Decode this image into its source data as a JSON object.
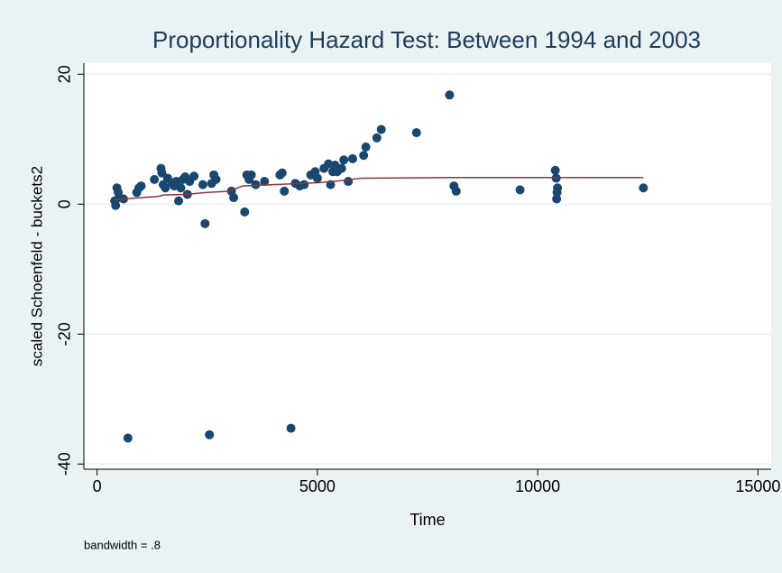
{
  "chart_data": {
    "type": "scatter",
    "title": "Proportionality Hazard Test: Between 1994 and 2003",
    "xlabel": "Time",
    "ylabel": "scaled Schoenfeld - buckets2",
    "note": "bandwidth = .8",
    "xlim": [
      -300,
      15300
    ],
    "ylim": [
      -40.8,
      21.7
    ],
    "xticks": [
      0,
      5000,
      10000,
      15000
    ],
    "yticks": [
      20,
      0,
      -20,
      -40
    ],
    "grid": true,
    "series": [
      {
        "type": "scatter",
        "color": "#1a476f",
        "x": [
          400,
          420,
          450,
          480,
          500,
          600,
          700,
          900,
          950,
          1000,
          1300,
          1450,
          1470,
          1500,
          1550,
          1600,
          1700,
          1750,
          1800,
          1850,
          1900,
          1950,
          2000,
          2050,
          2100,
          2200,
          2400,
          2450,
          2550,
          2600,
          2650,
          2700,
          3050,
          3100,
          3350,
          3400,
          3450,
          3500,
          3600,
          3800,
          4150,
          4200,
          4250,
          4400,
          4500,
          4600,
          4700,
          4850,
          4950,
          5000,
          5150,
          5250,
          5300,
          5350,
          5400,
          5450,
          5550,
          5600,
          5700,
          5800,
          6050,
          6100,
          6350,
          6450,
          7250,
          8000,
          8100,
          8150,
          9600,
          10400,
          10420,
          10450,
          10440,
          10430,
          12400
        ],
        "values": [
          0.5,
          -0.2,
          2.5,
          1.8,
          1,
          0.8,
          -36,
          1.8,
          2.5,
          2.8,
          3.8,
          5.5,
          4.8,
          3,
          2.5,
          4,
          3.3,
          2.8,
          3.5,
          0.5,
          2.5,
          3.8,
          4.2,
          1.5,
          3.5,
          4.3,
          3,
          -3,
          -35.5,
          3.2,
          4.5,
          3.8,
          2,
          1,
          -1.2,
          4.5,
          3.8,
          4.5,
          3,
          3.5,
          4.5,
          4.8,
          2,
          -34.5,
          3.2,
          2.8,
          3,
          4.5,
          5,
          4,
          5.5,
          6.2,
          3,
          5,
          6,
          5,
          5.5,
          6.8,
          3.5,
          7,
          7.5,
          8.8,
          10.2,
          11.5,
          11,
          16.8,
          2.8,
          2,
          2.2,
          5.2,
          4,
          2.5,
          1.8,
          0.8,
          2.5
        ]
      },
      {
        "type": "line",
        "color": "#90353b",
        "x": [
          400,
          1000,
          1400,
          1500,
          2000,
          2500,
          3000,
          3300,
          4000,
          5000,
          5500,
          6000,
          8000,
          12400
        ],
        "values": [
          0.7,
          1,
          1.2,
          1.4,
          1.5,
          1.8,
          2,
          2.8,
          3,
          3.3,
          3.6,
          4,
          4.1,
          4.1
        ]
      }
    ]
  }
}
